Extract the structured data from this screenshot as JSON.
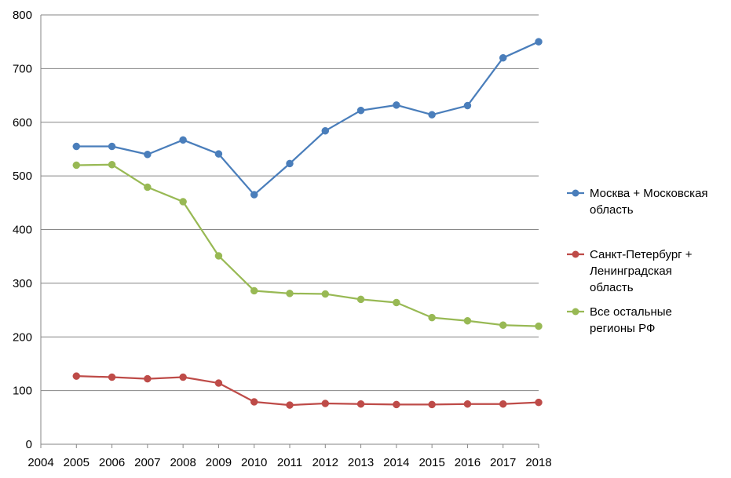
{
  "chart_data": {
    "type": "line",
    "title": "",
    "xlabel": "",
    "ylabel": "",
    "x": [
      2005,
      2006,
      2007,
      2008,
      2009,
      2010,
      2011,
      2012,
      2013,
      2014,
      2015,
      2016,
      2017,
      2018
    ],
    "xlim": [
      2004,
      2018
    ],
    "x_ticks": [
      "2004",
      "2005",
      "2006",
      "2007",
      "2008",
      "2009",
      "2010",
      "2011",
      "2012",
      "2013",
      "2014",
      "2015",
      "2016",
      "2017",
      "2018"
    ],
    "ylim": [
      0,
      800
    ],
    "y_ticks": [
      "0",
      "100",
      "200",
      "300",
      "400",
      "500",
      "600",
      "700",
      "800"
    ],
    "grid": true,
    "legend_position": "right",
    "series": [
      {
        "name_lines": [
          "Москва + Московская",
          "область"
        ],
        "color": "#4a7ebb",
        "values": [
          555,
          555,
          540,
          567,
          541,
          465,
          523,
          584,
          622,
          632,
          614,
          631,
          720,
          750
        ]
      },
      {
        "name_lines": [
          "Санкт-Петербург +",
          "Ленинградская",
          "область"
        ],
        "color": "#be4b48",
        "values": [
          127,
          125,
          122,
          125,
          114,
          79,
          73,
          76,
          75,
          74,
          74,
          75,
          75,
          78
        ]
      },
      {
        "name_lines": [
          "Все остальные",
          "регионы РФ"
        ],
        "color": "#98b954",
        "values": [
          520,
          521,
          479,
          452,
          351,
          286,
          281,
          280,
          270,
          264,
          236,
          230,
          222,
          220
        ]
      }
    ]
  }
}
